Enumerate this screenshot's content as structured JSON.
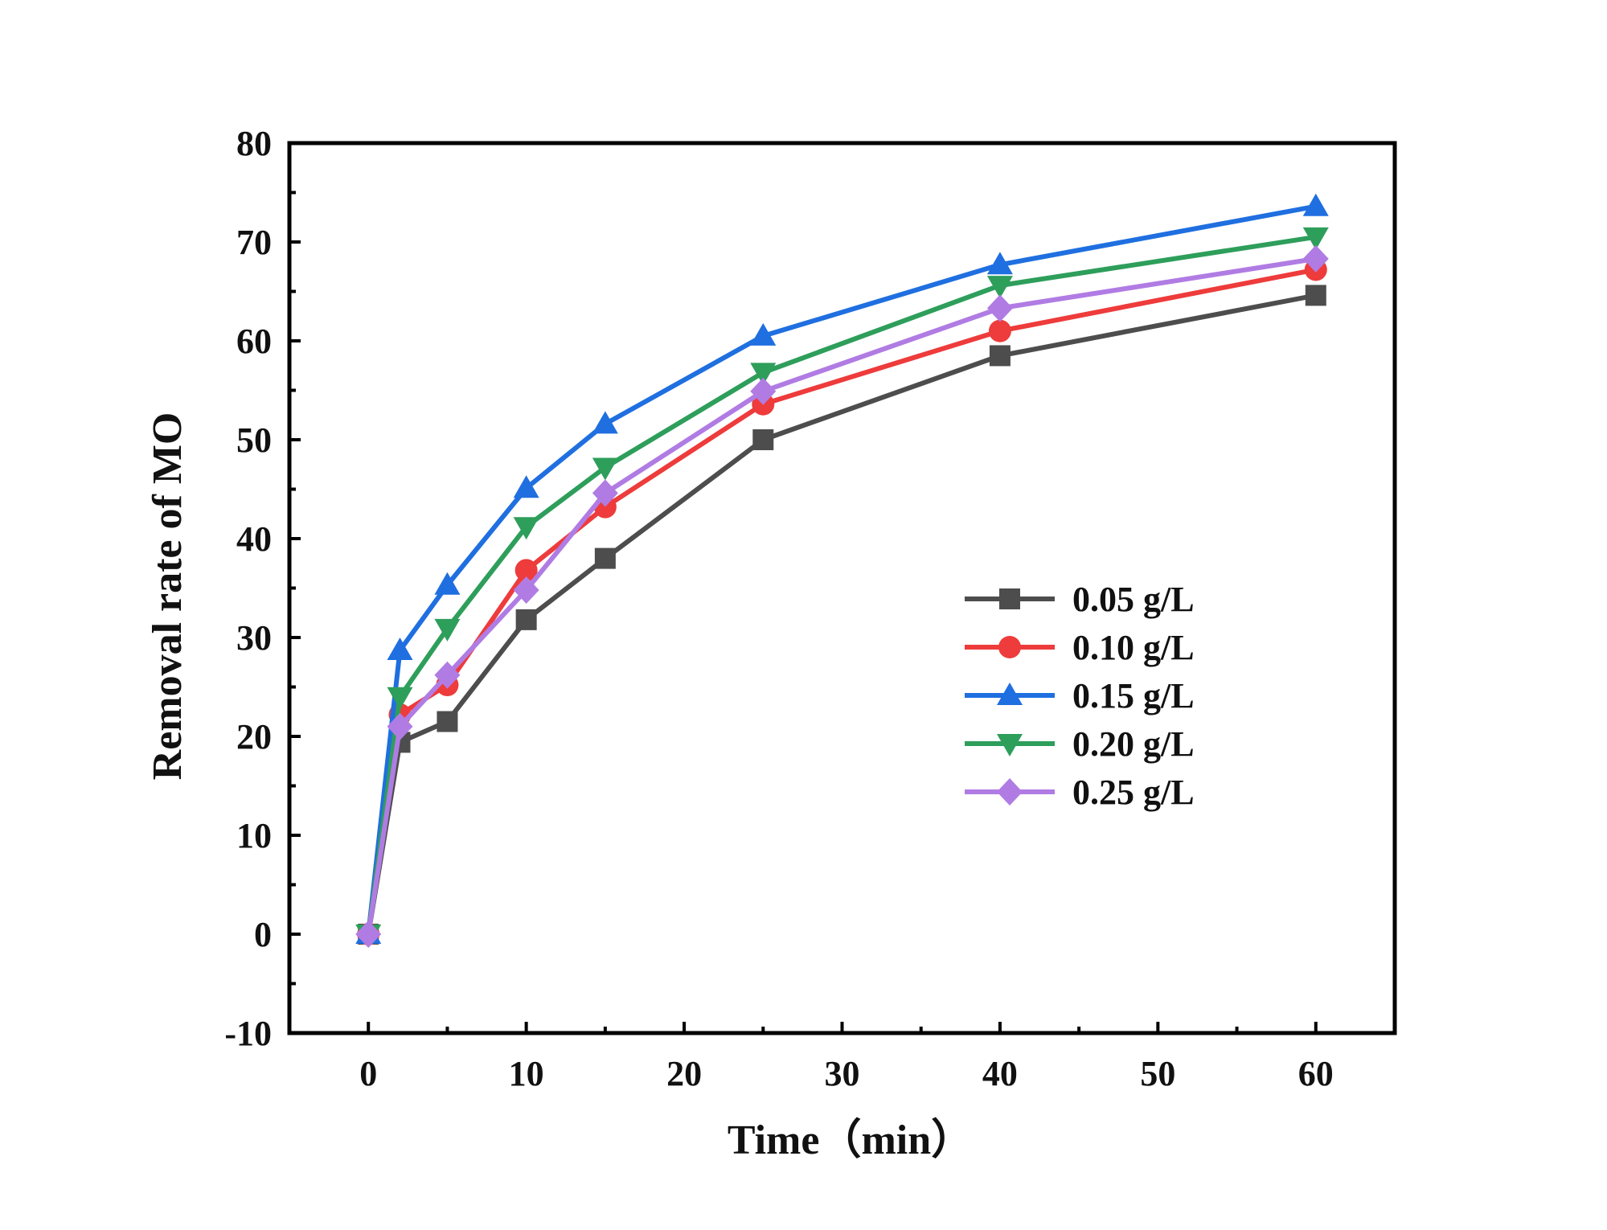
{
  "chart_data": {
    "type": "line",
    "title": "",
    "xlabel": "Time（min）",
    "ylabel": "Removal rate of MO",
    "xlim": [
      -5,
      65
    ],
    "ylim": [
      -10,
      80
    ],
    "xticks": [
      0,
      10,
      20,
      30,
      40,
      50,
      60
    ],
    "yticks": [
      -10,
      0,
      10,
      20,
      30,
      40,
      50,
      60,
      70,
      80
    ],
    "grid": false,
    "legend_position": "center-right",
    "x": [
      0,
      2,
      5,
      10,
      15,
      25,
      40,
      60
    ],
    "series": [
      {
        "name": "0.05 g/L",
        "marker": "square",
        "color": "#4d4d4d",
        "values": [
          0,
          19.4,
          21.5,
          31.8,
          38.0,
          50.0,
          58.5,
          64.6
        ]
      },
      {
        "name": "0.10 g/L",
        "marker": "circle",
        "color": "#ee3b3b",
        "values": [
          0,
          22.2,
          25.2,
          36.8,
          43.2,
          53.6,
          61.0,
          67.2
        ]
      },
      {
        "name": "0.15 g/L",
        "marker": "triangle-up",
        "color": "#1f6fe0",
        "values": [
          0,
          28.7,
          35.3,
          45.1,
          51.6,
          60.5,
          67.7,
          73.6
        ]
      },
      {
        "name": "0.20 g/L",
        "marker": "triangle-down",
        "color": "#2e9e5b",
        "values": [
          0,
          24.0,
          30.9,
          41.2,
          47.2,
          56.8,
          65.6,
          70.5
        ]
      },
      {
        "name": "0.25 g/L",
        "marker": "diamond",
        "color": "#b07ce3",
        "values": [
          0,
          21.0,
          26.2,
          34.8,
          44.6,
          54.9,
          63.3,
          68.3
        ]
      }
    ]
  }
}
